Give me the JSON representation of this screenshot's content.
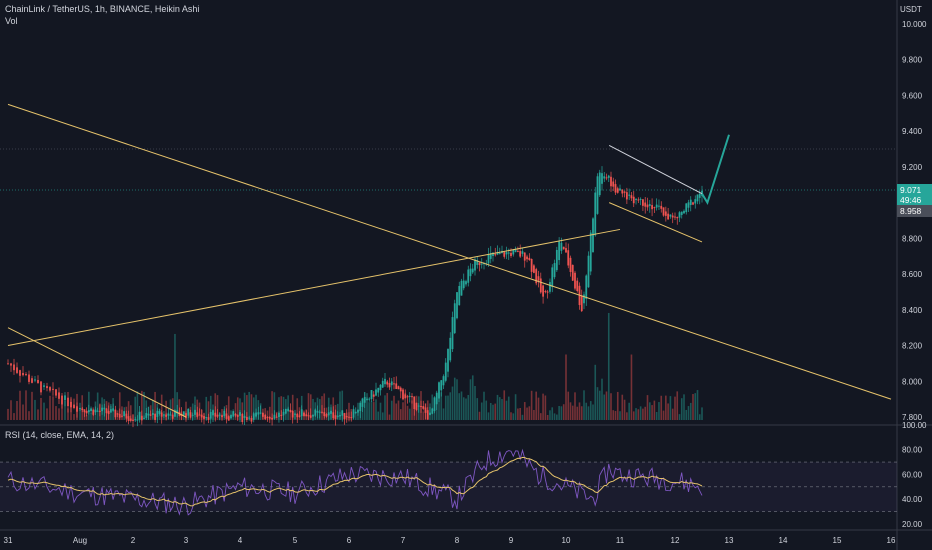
{
  "header": {
    "title": "ChainLink / TetherUS, 1h, BINANCE, Heikin Ashi",
    "vol_label": "Vol"
  },
  "price_axis": {
    "currency": "USDT",
    "ticks": [
      "10.000",
      "9.800",
      "9.600",
      "9.400",
      "9.200",
      "9.000",
      "8.800",
      "8.600",
      "8.400",
      "8.200",
      "8.000",
      "7.800"
    ]
  },
  "price_tags": {
    "last_price": "9.071",
    "countdown": "49:46",
    "secondary_price": "8.958"
  },
  "rsi_panel": {
    "label": "RSI (14, close, EMA, 14, 2)",
    "ticks": [
      "100.00",
      "80.00",
      "60.00",
      "40.00",
      "20.00"
    ],
    "upper_band": 70,
    "lower_band": 30
  },
  "time_axis": {
    "labels": [
      "31",
      "Aug",
      "2",
      "3",
      "4",
      "5",
      "6",
      "7",
      "8",
      "9",
      "10",
      "11",
      "12",
      "13",
      "14",
      "15",
      "16"
    ]
  },
  "colors": {
    "background": "#131722",
    "up": "#26a69a",
    "down": "#ef5350",
    "trendline": "#e6c36b",
    "rsi_line": "#7e57c2",
    "rsi_ma": "#e6c36b",
    "projection": "#26a69a",
    "price_tag_bg": "#26a69a",
    "secondary_tag_bg": "#4a4e59"
  },
  "chart_data": {
    "type": "candlestick",
    "title": "ChainLink / TetherUS, 1h, BINANCE, Heikin Ashi",
    "price_range": [
      7.75,
      10.1
    ],
    "rsi_range": [
      15,
      100
    ],
    "series": [
      {
        "name": "ChainLink / TetherUS",
        "description": "approximate Heikin Ashi closes (day index, price)",
        "points": [
          [
            0,
            8.1
          ],
          [
            0.5,
            7.95
          ],
          [
            1,
            7.85
          ],
          [
            2,
            7.8
          ],
          [
            3,
            7.82
          ],
          [
            4,
            7.8
          ],
          [
            5,
            7.82
          ],
          [
            6,
            7.81
          ],
          [
            6.7,
            8.0
          ],
          [
            7.5,
            7.8
          ],
          [
            7.8,
            8.1
          ],
          [
            8,
            8.5
          ],
          [
            8.3,
            8.65
          ],
          [
            8.6,
            8.7
          ],
          [
            9,
            8.72
          ],
          [
            9.3,
            8.7
          ],
          [
            9.6,
            8.45
          ],
          [
            9.9,
            8.8
          ],
          [
            10.3,
            8.4
          ],
          [
            10.6,
            9.2
          ],
          [
            11,
            9.05
          ],
          [
            11.5,
            9.0
          ],
          [
            12,
            8.9
          ],
          [
            12.5,
            9.07
          ]
        ]
      },
      {
        "name": "RSI",
        "points": [
          [
            0,
            55
          ],
          [
            1,
            45
          ],
          [
            2,
            40
          ],
          [
            3,
            35
          ],
          [
            4,
            50
          ],
          [
            5,
            45
          ],
          [
            6,
            60
          ],
          [
            7,
            58
          ],
          [
            8,
            40
          ],
          [
            8.5,
            70
          ],
          [
            9,
            80
          ],
          [
            9.5,
            60
          ],
          [
            10,
            50
          ],
          [
            10.5,
            40
          ],
          [
            10.8,
            65
          ],
          [
            11,
            60
          ],
          [
            12,
            55
          ],
          [
            12.5,
            50
          ]
        ]
      }
    ],
    "annotations": [
      {
        "type": "trendline",
        "from": [
          0,
          9.55
        ],
        "to": [
          16,
          7.9
        ]
      },
      {
        "type": "trendline",
        "from": [
          0,
          8.2
        ],
        "to": [
          11,
          8.85
        ]
      },
      {
        "type": "trendline",
        "from": [
          0,
          8.3
        ],
        "to": [
          3,
          7.8
        ]
      },
      {
        "type": "channel",
        "upper": [
          [
            10.8,
            9.32
          ],
          [
            12.5,
            9.05
          ]
        ],
        "lower": [
          [
            10.8,
            9.0
          ],
          [
            12.5,
            8.78
          ]
        ]
      },
      {
        "type": "projection",
        "points": [
          [
            12.5,
            9.05
          ],
          [
            12.6,
            9.0
          ],
          [
            13,
            9.38
          ]
        ]
      }
    ],
    "rsi_ma_period": 14
  }
}
